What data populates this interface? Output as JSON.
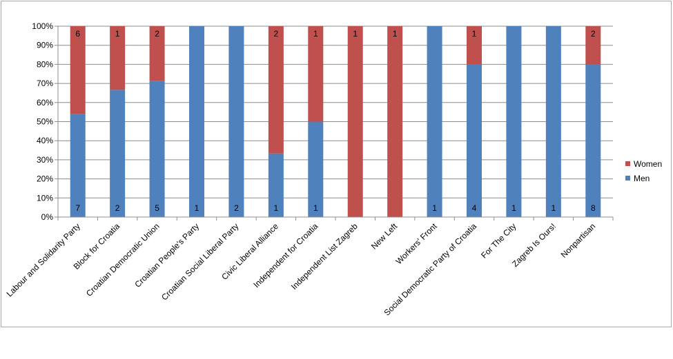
{
  "chart_data": {
    "type": "bar",
    "stacked": true,
    "percent_stacked": true,
    "categories": [
      "Labour and Solidarity Party",
      "Block for Croatia",
      "Croatian Democratic Union",
      "Croatian People's Party",
      "Croatian Social Liberal Party",
      "Civic Liberal Alliance",
      "Independent for Croatia",
      "Independent List Zagreb",
      "New Left",
      "Workers' Front",
      "Social Democratic Party of Croatia",
      "For The City",
      "Zagreb Is Ours!",
      "Nonpartisan"
    ],
    "series": [
      {
        "name": "Men",
        "color": "#4f81bd",
        "values": [
          7,
          2,
          5,
          1,
          2,
          1,
          1,
          0,
          0,
          1,
          4,
          1,
          1,
          8
        ]
      },
      {
        "name": "Women",
        "color": "#c0504d",
        "values": [
          6,
          1,
          2,
          0,
          0,
          2,
          1,
          1,
          1,
          0,
          1,
          0,
          0,
          2
        ]
      }
    ],
    "yticks": [
      "0%",
      "10%",
      "20%",
      "30%",
      "40%",
      "50%",
      "60%",
      "70%",
      "80%",
      "90%",
      "100%"
    ],
    "ylim": [
      0,
      100
    ],
    "grid": true,
    "legend": {
      "position": "right",
      "entries": [
        "Women",
        "Men"
      ]
    },
    "title": "",
    "xlabel": "",
    "ylabel": ""
  }
}
